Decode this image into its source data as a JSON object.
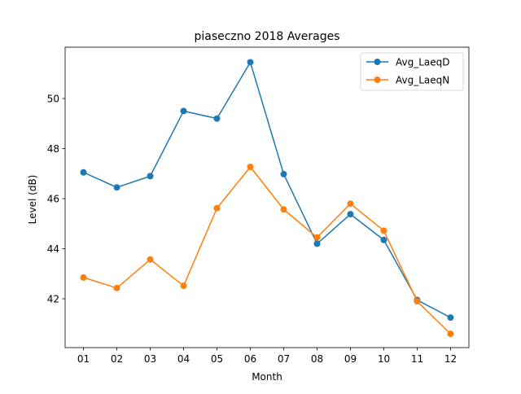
{
  "chart_data": {
    "type": "line",
    "title": "piaseczno 2018 Averages",
    "xlabel": "Month",
    "ylabel": "Level (dB)",
    "categories": [
      "01",
      "02",
      "03",
      "04",
      "05",
      "06",
      "07",
      "08",
      "09",
      "10",
      "11",
      "12"
    ],
    "yticks": [
      42,
      44,
      46,
      48,
      50
    ],
    "ylim": [
      40.05,
      52.05
    ],
    "grid": false,
    "legend_position": "top-right",
    "series": [
      {
        "name": "Avg_LaeqD",
        "color": "#1f77b4",
        "marker": "circle",
        "values": [
          47.05,
          46.45,
          46.9,
          49.5,
          49.2,
          51.45,
          46.98,
          44.2,
          45.38,
          44.35,
          41.95,
          41.25
        ]
      },
      {
        "name": "Avg_LaeqN",
        "color": "#ff7f0e",
        "marker": "circle",
        "values": [
          42.85,
          42.43,
          43.57,
          42.52,
          45.62,
          47.27,
          45.57,
          44.45,
          45.8,
          44.72,
          41.9,
          40.6
        ]
      }
    ]
  }
}
